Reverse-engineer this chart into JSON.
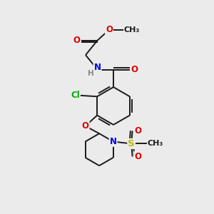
{
  "bg_color": "#ebebeb",
  "bond_color": "#1a1a1a",
  "bond_width": 1.4,
  "atom_colors": {
    "O": "#dd0000",
    "N": "#0000ee",
    "S": "#bbbb00",
    "Cl": "#00aa00",
    "H": "#888888",
    "C": "#1a1a1a"
  },
  "font_size": 8.5
}
